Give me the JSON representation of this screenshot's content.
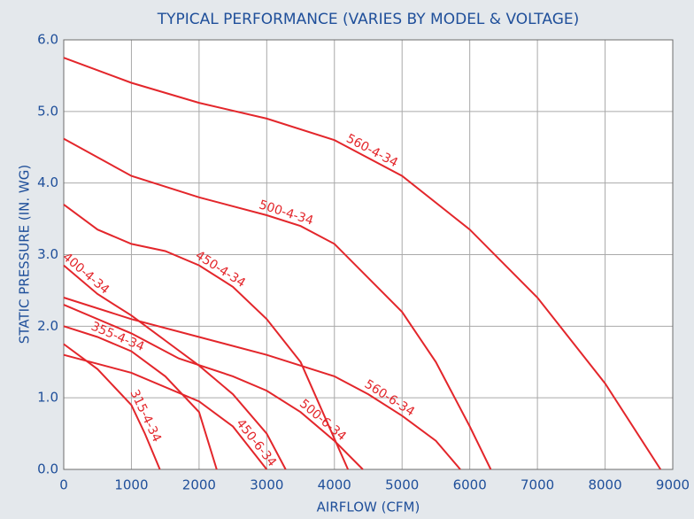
{
  "chart_data": {
    "type": "line",
    "title": "TYPICAL PERFORMANCE (VARIES BY MODEL & VOLTAGE)",
    "x_label": "AIRFLOW (CFM)",
    "y_label": "STATIC PRESSURE (IN. WG)",
    "xlim": [
      0,
      9000
    ],
    "ylim": [
      0,
      6
    ],
    "xticks": [
      0,
      1000,
      2000,
      3000,
      4000,
      5000,
      6000,
      7000,
      8000,
      9000
    ],
    "yticks": [
      {
        "value": 0,
        "label": "0.0"
      },
      {
        "value": 1,
        "label": "1.0"
      },
      {
        "value": 2,
        "label": "2.0"
      },
      {
        "value": 3,
        "label": "3.0"
      },
      {
        "value": 4,
        "label": "4.0"
      },
      {
        "value": 5,
        "label": "5.0"
      },
      {
        "value": 6,
        "label": "6.0"
      }
    ],
    "grid": true,
    "series": [
      {
        "name": "560-4-34",
        "color": "#e3262b",
        "x": [
          0,
          1000,
          2000,
          3000,
          4000,
          5000,
          6000,
          7000,
          8000,
          8820
        ],
        "values": [
          5.75,
          5.4,
          5.12,
          4.9,
          4.6,
          4.1,
          3.35,
          2.4,
          1.2,
          0
        ]
      },
      {
        "name": "500-4-34",
        "color": "#e3262b",
        "x": [
          0,
          1000,
          2000,
          3000,
          3500,
          4000,
          5000,
          5500,
          6000,
          6310
        ],
        "values": [
          4.62,
          4.1,
          3.8,
          3.55,
          3.4,
          3.15,
          2.2,
          1.5,
          0.6,
          0
        ]
      },
      {
        "name": "450-4-34",
        "color": "#e3262b",
        "x": [
          0,
          500,
          1000,
          1500,
          2000,
          2500,
          3000,
          3500,
          4200
        ],
        "values": [
          3.7,
          3.35,
          3.15,
          3.05,
          2.85,
          2.55,
          2.1,
          1.5,
          0
        ]
      },
      {
        "name": "400-4-34",
        "color": "#e3262b",
        "x": [
          0,
          500,
          1000,
          1500,
          2000,
          2500,
          3000,
          3280
        ],
        "values": [
          2.85,
          2.45,
          2.15,
          1.8,
          1.45,
          1.05,
          0.5,
          0
        ]
      },
      {
        "name": "355-4-34",
        "color": "#e3262b",
        "x": [
          0,
          500,
          1000,
          1500,
          2000,
          2260
        ],
        "values": [
          2.0,
          1.85,
          1.65,
          1.3,
          0.8,
          0
        ]
      },
      {
        "name": "315-4-34",
        "color": "#e3262b",
        "x": [
          0,
          500,
          1000,
          1200,
          1420
        ],
        "values": [
          1.75,
          1.4,
          0.9,
          0.5,
          0
        ]
      },
      {
        "name": "450-6-34",
        "color": "#e3262b",
        "x": [
          0,
          1000,
          2000,
          2500,
          3000
        ],
        "values": [
          1.6,
          1.35,
          0.95,
          0.6,
          0
        ]
      },
      {
        "name": "500-6-34",
        "color": "#e3262b",
        "x": [
          0,
          1000,
          1700,
          2500,
          3000,
          3500,
          4000,
          4420
        ],
        "values": [
          2.3,
          1.9,
          1.55,
          1.3,
          1.1,
          0.8,
          0.4,
          0
        ]
      },
      {
        "name": "560-6-34",
        "color": "#e3262b",
        "x": [
          0,
          1000,
          2000,
          3000,
          4000,
          4500,
          5000,
          5500,
          5860
        ],
        "values": [
          2.4,
          2.1,
          1.85,
          1.6,
          1.3,
          1.05,
          0.75,
          0.4,
          0
        ]
      }
    ]
  }
}
